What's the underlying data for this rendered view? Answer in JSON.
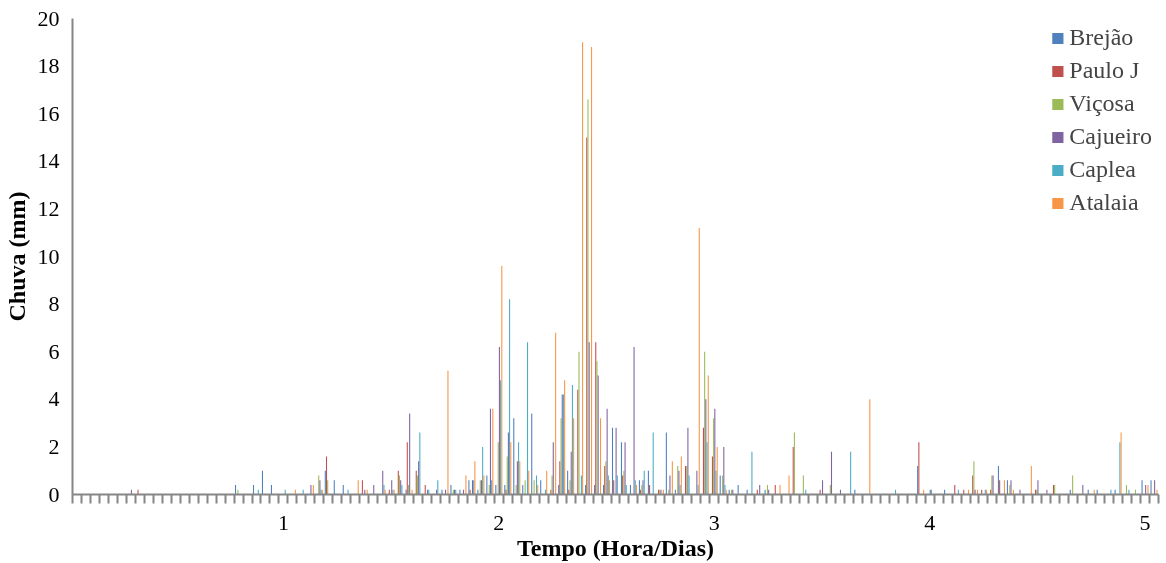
{
  "chart_data": {
    "type": "bar",
    "xlabel": "Tempo (Hora/Dias)",
    "ylabel": "Chuva (mm)",
    "categories": [
      null,
      null,
      null,
      null,
      null,
      null,
      null,
      null,
      null,
      null,
      null,
      null,
      null,
      null,
      null,
      null,
      null,
      null,
      null,
      null,
      null,
      null,
      null,
      "1",
      null,
      null,
      null,
      null,
      null,
      null,
      null,
      null,
      null,
      null,
      null,
      null,
      null,
      null,
      null,
      null,
      null,
      null,
      null,
      null,
      null,
      null,
      null,
      "2",
      null,
      null,
      null,
      null,
      null,
      null,
      null,
      null,
      null,
      null,
      null,
      null,
      null,
      null,
      null,
      null,
      null,
      null,
      null,
      null,
      null,
      null,
      null,
      "3",
      null,
      null,
      null,
      null,
      null,
      null,
      null,
      null,
      null,
      null,
      null,
      null,
      null,
      null,
      null,
      null,
      null,
      null,
      null,
      null,
      null,
      null,
      null,
      "4",
      null,
      null,
      null,
      null,
      null,
      null,
      null,
      null,
      null,
      null,
      null,
      null,
      null,
      null,
      null,
      null,
      null,
      null,
      null,
      null,
      null,
      null,
      null,
      "5",
      null
    ],
    "ylim": [
      0,
      20
    ],
    "yticks": [
      0,
      2,
      4,
      6,
      8,
      10,
      12,
      14,
      16,
      18,
      20
    ],
    "legend": "top right",
    "series": [
      {
        "name": "Brejão",
        "color": "#4f81bd",
        "values": [
          0,
          0,
          0,
          0,
          0,
          0,
          0,
          0,
          0,
          0,
          0,
          0,
          0,
          0,
          0,
          0,
          0,
          0,
          0.4,
          0,
          0.4,
          1.0,
          0.4,
          0,
          0,
          0,
          0,
          0,
          1.0,
          0.6,
          0.4,
          0,
          0,
          0,
          0,
          0,
          0,
          0.2,
          0,
          0,
          0,
          0.2,
          0.4,
          0.2,
          0.6,
          0.2,
          0.8,
          0.4,
          0.4,
          3.2,
          0.4,
          3.4,
          0.6,
          0,
          0.4,
          1.0,
          0,
          0.4,
          0.4,
          0.4,
          2.8,
          2.2,
          0.4,
          0.6,
          1.0,
          0,
          2.6,
          0.2,
          0,
          0,
          0,
          0,
          0.8,
          0.2,
          0.4,
          0.2,
          0,
          0.2,
          0,
          0,
          0,
          0,
          0,
          0,
          0,
          0,
          0,
          0.2,
          0,
          0,
          0,
          0,
          0,
          0,
          1.2,
          0,
          0,
          0.2,
          0,
          0,
          0,
          0,
          0,
          1.2,
          0.6,
          0,
          0,
          0,
          0,
          0,
          0,
          0.2,
          0,
          0.2,
          0.2,
          0,
          0.2,
          0,
          0,
          0.6,
          0.6
        ]
      },
      {
        "name": "Paulo J",
        "color": "#c0504d",
        "values": [
          0,
          0,
          0,
          0,
          0,
          0,
          0,
          0.2,
          0,
          0,
          0,
          0,
          0,
          0,
          0,
          0,
          0,
          0,
          0,
          0,
          0,
          0,
          0,
          0,
          0,
          0,
          0,
          0,
          1.6,
          0,
          0,
          0,
          0.6,
          0,
          0,
          0.2,
          1.0,
          2.2,
          1.0,
          0.4,
          0,
          0,
          0,
          0,
          0.2,
          0,
          0,
          0,
          0.2,
          0,
          0,
          0,
          0,
          0.2,
          1.4,
          0.2,
          4.4,
          15.0,
          6.4,
          1.2,
          0.6,
          0.8,
          0,
          0.2,
          0.4,
          0.2,
          0,
          0,
          1.2,
          0,
          2.8,
          1.6,
          0,
          0,
          0,
          0,
          0.2,
          0,
          0.4,
          0,
          2.0,
          0,
          0,
          0.2,
          0,
          0,
          0,
          0,
          0,
          0,
          0,
          0,
          0,
          0,
          2.2,
          0,
          0,
          0,
          0.4,
          0.2,
          0.8,
          0.2,
          0.2,
          0.6,
          0,
          0,
          0,
          0.2,
          0,
          0.4,
          0,
          0,
          0,
          0,
          0,
          0,
          0,
          0,
          0,
          0,
          0
        ]
      },
      {
        "name": "Viçosa",
        "color": "#9bbb59",
        "values": [
          0,
          0,
          0,
          0,
          0,
          0,
          0,
          0,
          0,
          0,
          0,
          0,
          0,
          0,
          0,
          0,
          0,
          0,
          0.2,
          0,
          0,
          0,
          0,
          0,
          0,
          0,
          0,
          0.8,
          0.6,
          0,
          0,
          0,
          0,
          0,
          0,
          0,
          0.8,
          0.4,
          0.8,
          0,
          0,
          0,
          0.2,
          0,
          0,
          0.6,
          0.4,
          2.2,
          1.6,
          0.4,
          0.6,
          0.6,
          0,
          0.8,
          3.2,
          0.6,
          6.0,
          16.6,
          5.6,
          1.4,
          0,
          1.0,
          0,
          0.4,
          0,
          0.2,
          0.2,
          1.2,
          1.2,
          0,
          6.0,
          3.2,
          0.8,
          0.2,
          0,
          0,
          0,
          0.4,
          0,
          0,
          2.6,
          0.8,
          0,
          0,
          0.4,
          0,
          0,
          0,
          0,
          0,
          0,
          0,
          0,
          0,
          0,
          0,
          0,
          0,
          0,
          0,
          1.4,
          0,
          0.8,
          0,
          0.4,
          0,
          0,
          0.2,
          0,
          0.4,
          0,
          0.8,
          0,
          0,
          0,
          0,
          0,
          0.4,
          0.2,
          0,
          0
        ]
      },
      {
        "name": "Cajueiro",
        "color": "#8064a2",
        "values": [
          0,
          0,
          0,
          0,
          0,
          0,
          0.2,
          0,
          0,
          0,
          0,
          0,
          0,
          0,
          0,
          0,
          0,
          0,
          0,
          0,
          0,
          0,
          0,
          0,
          0,
          0,
          0.4,
          0.6,
          0,
          0,
          0,
          0,
          0.2,
          0.4,
          1.0,
          0.6,
          0.6,
          3.4,
          1.4,
          0.2,
          0.2,
          0.2,
          0.2,
          0.2,
          0.6,
          0.6,
          3.6,
          6.2,
          2.6,
          1.4,
          0,
          0,
          0,
          2.2,
          4.2,
          1.8,
          0,
          6.4,
          5.0,
          3.6,
          2.8,
          2.2,
          6.2,
          0.6,
          0,
          0.2,
          0.8,
          1.0,
          2.8,
          1.0,
          4.0,
          3.6,
          2.0,
          0.2,
          0,
          0,
          0.4,
          0.2,
          0,
          0,
          0,
          0,
          0,
          0.6,
          1.8,
          0.2,
          0,
          0,
          0,
          0,
          0,
          0,
          0,
          0,
          0,
          0.2,
          0,
          0,
          0,
          0,
          0.2,
          0,
          0.8,
          0,
          0.6,
          0.2,
          0,
          0.6,
          0.2,
          0,
          0,
          0,
          0.4,
          0,
          0,
          0,
          0,
          0,
          0,
          0.4,
          0.6
        ]
      },
      {
        "name": "Caplea",
        "color": "#4bacc6",
        "values": [
          0,
          0,
          0,
          0,
          0,
          0,
          0,
          0,
          0,
          0,
          0,
          0,
          0,
          0,
          0,
          0,
          0,
          0,
          0,
          0,
          0.2,
          0,
          0,
          0.2,
          0,
          0.2,
          0,
          0.2,
          0,
          0,
          0.2,
          0,
          0,
          0,
          0.4,
          0.2,
          0.4,
          0,
          2.6,
          0.2,
          0.6,
          0,
          0.2,
          0,
          0.6,
          2.0,
          0.6,
          4.8,
          8.2,
          2.2,
          6.4,
          0.8,
          0.2,
          0,
          4.2,
          4.6,
          0.8,
          0,
          0,
          0.8,
          0.8,
          0.4,
          0.6,
          1.0,
          2.6,
          0,
          0,
          0.4,
          0.8,
          0.4,
          2.2,
          1.0,
          0.4,
          0,
          0,
          1.8,
          0,
          0,
          0,
          0,
          0,
          0.2,
          0,
          0,
          0,
          0,
          1.8,
          0,
          0,
          0,
          0,
          0.2,
          0,
          0,
          0,
          0.2,
          0,
          0,
          0.2,
          0,
          0,
          0.2,
          0,
          0,
          0,
          0,
          0,
          0,
          0,
          0,
          0,
          0,
          0,
          0,
          0,
          0.2,
          2.2,
          0.2,
          0,
          0,
          0
        ]
      },
      {
        "name": "Atalaia",
        "color": "#f79646",
        "values": [
          0,
          0,
          0,
          0,
          0,
          0,
          0,
          0,
          0,
          0,
          0,
          0,
          0,
          0,
          0,
          0,
          0,
          0,
          0,
          0,
          0,
          0,
          0,
          0,
          0.2,
          0,
          0.4,
          0.2,
          0,
          0,
          0,
          0.6,
          0.2,
          0,
          0.2,
          0.2,
          0,
          0.2,
          0,
          0,
          0,
          5.2,
          0,
          0.8,
          1.4,
          0.8,
          3.6,
          9.6,
          2.2,
          1.4,
          1.0,
          0.4,
          1.0,
          6.8,
          4.8,
          3.2,
          19.0,
          18.8,
          3.2,
          0.6,
          0,
          0,
          0.4,
          0,
          0,
          0.2,
          1.4,
          1.6,
          0,
          11.2,
          5.0,
          2.0,
          0.2,
          0,
          0,
          0,
          0,
          0,
          0.4,
          0.8,
          0,
          0,
          0,
          0,
          0,
          0,
          0,
          0,
          4.0,
          0,
          0,
          0,
          0,
          0,
          0.2,
          0,
          0,
          0,
          0,
          0.2,
          0.2,
          0.2,
          0,
          0.6,
          0.2,
          0,
          1.2,
          0,
          0,
          0,
          0,
          0,
          0,
          0.2,
          0,
          0,
          2.6,
          0,
          0,
          0.4,
          0.2
        ]
      }
    ]
  }
}
